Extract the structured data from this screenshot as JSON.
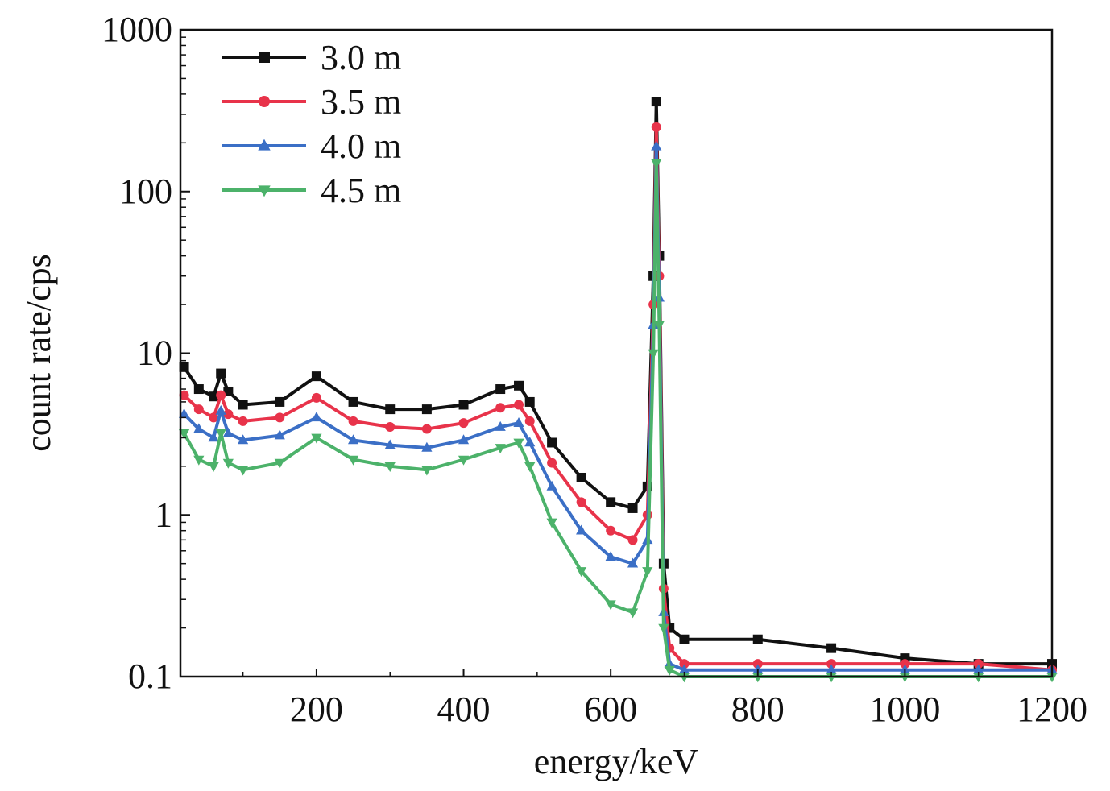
{
  "chart_data": {
    "type": "line",
    "title": "",
    "xlabel": "energy/keV",
    "ylabel": "count rate/cps",
    "xlim": [
      15,
      1200
    ],
    "ylim": [
      0.1,
      1000
    ],
    "yscale": "log",
    "grid": false,
    "legend_position": "top-left",
    "x_ticks": [
      200,
      400,
      600,
      800,
      1000,
      1200
    ],
    "x_tick_labels": [
      "200",
      "400",
      "600",
      "800",
      "1000",
      "1200"
    ],
    "y_ticks": [
      0.1,
      1,
      10,
      100,
      1000
    ],
    "y_tick_labels": [
      "0.1",
      "1",
      "10",
      "100",
      "1000"
    ],
    "x": [
      20,
      40,
      60,
      70,
      80,
      100,
      150,
      200,
      250,
      300,
      350,
      400,
      450,
      475,
      490,
      520,
      560,
      600,
      630,
      650,
      658,
      662,
      666,
      672,
      680,
      700,
      800,
      900,
      1000,
      1100,
      1200
    ],
    "series": [
      {
        "name": "3.0 m",
        "color": "#111111",
        "marker": "square",
        "values": [
          8.2,
          6.0,
          5.4,
          7.5,
          5.8,
          4.8,
          5.0,
          7.2,
          5.0,
          4.5,
          4.5,
          4.8,
          6.0,
          6.3,
          5.0,
          2.8,
          1.7,
          1.2,
          1.1,
          1.5,
          30,
          360,
          40,
          0.5,
          0.2,
          0.17,
          0.17,
          0.15,
          0.13,
          0.12,
          0.12
        ]
      },
      {
        "name": "3.5 m",
        "color": "#e8334a",
        "marker": "circle",
        "values": [
          5.5,
          4.5,
          4.0,
          5.5,
          4.2,
          3.8,
          4.0,
          5.3,
          3.8,
          3.5,
          3.4,
          3.7,
          4.6,
          4.8,
          3.8,
          2.1,
          1.2,
          0.8,
          0.7,
          1.0,
          20,
          250,
          30,
          0.35,
          0.15,
          0.12,
          0.12,
          0.12,
          0.12,
          0.12,
          0.11
        ]
      },
      {
        "name": "4.0 m",
        "color": "#3b6fc6",
        "marker": "triangle-up",
        "values": [
          4.2,
          3.4,
          3.0,
          4.4,
          3.2,
          2.9,
          3.1,
          4.0,
          2.9,
          2.7,
          2.6,
          2.9,
          3.5,
          3.7,
          2.8,
          1.5,
          0.8,
          0.55,
          0.5,
          0.7,
          15,
          190,
          22,
          0.25,
          0.12,
          0.11,
          0.11,
          0.11,
          0.11,
          0.11,
          0.11
        ]
      },
      {
        "name": "4.5 m",
        "color": "#4cb26a",
        "marker": "triangle-down",
        "values": [
          3.2,
          2.2,
          2.0,
          3.2,
          2.1,
          1.9,
          2.1,
          3.0,
          2.2,
          2.0,
          1.9,
          2.2,
          2.6,
          2.8,
          2.0,
          0.9,
          0.45,
          0.28,
          0.25,
          0.45,
          10,
          150,
          15,
          0.2,
          0.11,
          0.1,
          0.1,
          0.1,
          0.1,
          0.1,
          0.1
        ]
      }
    ]
  }
}
